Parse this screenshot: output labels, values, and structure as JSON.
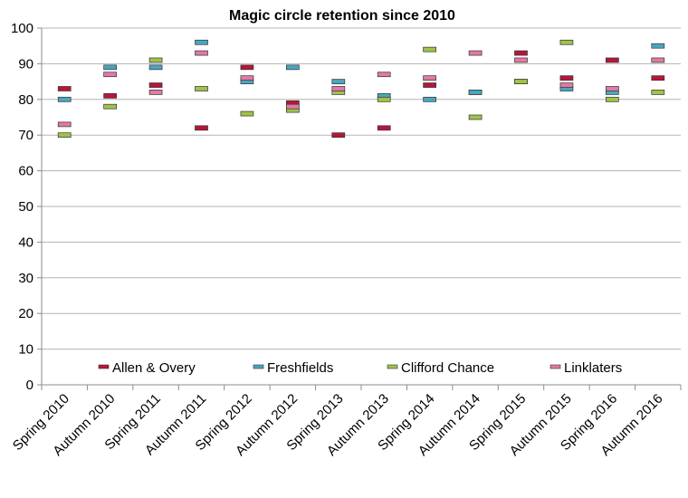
{
  "chart_data": {
    "type": "scatter",
    "title": "Magic circle retention since 2010",
    "xlabel": "",
    "ylabel": "",
    "ylim": [
      0,
      100
    ],
    "yticks": [
      0,
      10,
      20,
      30,
      40,
      50,
      60,
      70,
      80,
      90,
      100
    ],
    "grid": true,
    "legend_position": "bottom-inside",
    "categories": [
      "Spring 2010",
      "Autumn 2010",
      "Spring 2011",
      "Autumn 2011",
      "Spring 2012",
      "Autumn 2012",
      "Spring 2013",
      "Autumn 2013",
      "Spring 2014",
      "Autumn 2014",
      "Spring 2015",
      "Autumn 2015",
      "Spring 2016",
      "Autumn 2016"
    ],
    "series": [
      {
        "name": "Allen & Overy",
        "color": "#b8153a",
        "values": [
          83,
          81,
          84,
          72,
          89,
          79,
          70,
          72,
          84,
          82,
          93,
          86,
          91,
          86
        ]
      },
      {
        "name": "Freshfields",
        "color": "#4aa6c0",
        "values": [
          80,
          89,
          89,
          96,
          85,
          89,
          85,
          81,
          80,
          82,
          85,
          83,
          82,
          95
        ]
      },
      {
        "name": "Clifford Chance",
        "color": "#9fc24a",
        "values": [
          70,
          78,
          91,
          83,
          76,
          77,
          82,
          80,
          94,
          75,
          85,
          96,
          80,
          82
        ]
      },
      {
        "name": "Linklaters",
        "color": "#e07aa6",
        "values": [
          73,
          87,
          82,
          93,
          86,
          78,
          83,
          87,
          86,
          93,
          91,
          84,
          83,
          91
        ]
      }
    ]
  }
}
